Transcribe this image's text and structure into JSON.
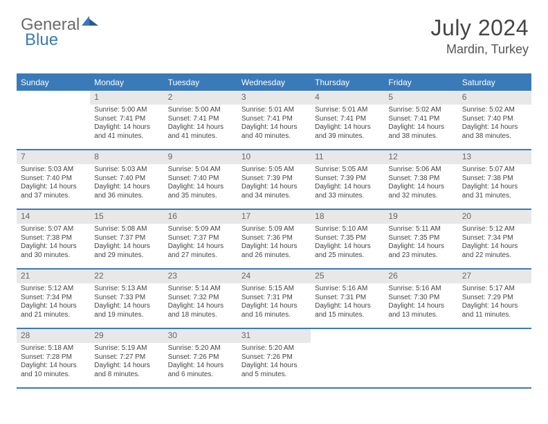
{
  "brand": {
    "part1": "General",
    "part2": "Blue"
  },
  "header": {
    "month_title": "July 2024",
    "location": "Mardin, Turkey"
  },
  "colors": {
    "accent": "#3a7ab8",
    "header_text": "#ffffff",
    "daybar_bg": "#e8e8e8",
    "text": "#444444"
  },
  "weekdays": [
    "Sunday",
    "Monday",
    "Tuesday",
    "Wednesday",
    "Thursday",
    "Friday",
    "Saturday"
  ],
  "start_offset": 1,
  "days": [
    {
      "n": 1,
      "sunrise": "5:00 AM",
      "sunset": "7:41 PM",
      "daylight": "14 hours and 41 minutes."
    },
    {
      "n": 2,
      "sunrise": "5:00 AM",
      "sunset": "7:41 PM",
      "daylight": "14 hours and 41 minutes."
    },
    {
      "n": 3,
      "sunrise": "5:01 AM",
      "sunset": "7:41 PM",
      "daylight": "14 hours and 40 minutes."
    },
    {
      "n": 4,
      "sunrise": "5:01 AM",
      "sunset": "7:41 PM",
      "daylight": "14 hours and 39 minutes."
    },
    {
      "n": 5,
      "sunrise": "5:02 AM",
      "sunset": "7:41 PM",
      "daylight": "14 hours and 38 minutes."
    },
    {
      "n": 6,
      "sunrise": "5:02 AM",
      "sunset": "7:40 PM",
      "daylight": "14 hours and 38 minutes."
    },
    {
      "n": 7,
      "sunrise": "5:03 AM",
      "sunset": "7:40 PM",
      "daylight": "14 hours and 37 minutes."
    },
    {
      "n": 8,
      "sunrise": "5:03 AM",
      "sunset": "7:40 PM",
      "daylight": "14 hours and 36 minutes."
    },
    {
      "n": 9,
      "sunrise": "5:04 AM",
      "sunset": "7:40 PM",
      "daylight": "14 hours and 35 minutes."
    },
    {
      "n": 10,
      "sunrise": "5:05 AM",
      "sunset": "7:39 PM",
      "daylight": "14 hours and 34 minutes."
    },
    {
      "n": 11,
      "sunrise": "5:05 AM",
      "sunset": "7:39 PM",
      "daylight": "14 hours and 33 minutes."
    },
    {
      "n": 12,
      "sunrise": "5:06 AM",
      "sunset": "7:38 PM",
      "daylight": "14 hours and 32 minutes."
    },
    {
      "n": 13,
      "sunrise": "5:07 AM",
      "sunset": "7:38 PM",
      "daylight": "14 hours and 31 minutes."
    },
    {
      "n": 14,
      "sunrise": "5:07 AM",
      "sunset": "7:38 PM",
      "daylight": "14 hours and 30 minutes."
    },
    {
      "n": 15,
      "sunrise": "5:08 AM",
      "sunset": "7:37 PM",
      "daylight": "14 hours and 29 minutes."
    },
    {
      "n": 16,
      "sunrise": "5:09 AM",
      "sunset": "7:37 PM",
      "daylight": "14 hours and 27 minutes."
    },
    {
      "n": 17,
      "sunrise": "5:09 AM",
      "sunset": "7:36 PM",
      "daylight": "14 hours and 26 minutes."
    },
    {
      "n": 18,
      "sunrise": "5:10 AM",
      "sunset": "7:35 PM",
      "daylight": "14 hours and 25 minutes."
    },
    {
      "n": 19,
      "sunrise": "5:11 AM",
      "sunset": "7:35 PM",
      "daylight": "14 hours and 23 minutes."
    },
    {
      "n": 20,
      "sunrise": "5:12 AM",
      "sunset": "7:34 PM",
      "daylight": "14 hours and 22 minutes."
    },
    {
      "n": 21,
      "sunrise": "5:12 AM",
      "sunset": "7:34 PM",
      "daylight": "14 hours and 21 minutes."
    },
    {
      "n": 22,
      "sunrise": "5:13 AM",
      "sunset": "7:33 PM",
      "daylight": "14 hours and 19 minutes."
    },
    {
      "n": 23,
      "sunrise": "5:14 AM",
      "sunset": "7:32 PM",
      "daylight": "14 hours and 18 minutes."
    },
    {
      "n": 24,
      "sunrise": "5:15 AM",
      "sunset": "7:31 PM",
      "daylight": "14 hours and 16 minutes."
    },
    {
      "n": 25,
      "sunrise": "5:16 AM",
      "sunset": "7:31 PM",
      "daylight": "14 hours and 15 minutes."
    },
    {
      "n": 26,
      "sunrise": "5:16 AM",
      "sunset": "7:30 PM",
      "daylight": "14 hours and 13 minutes."
    },
    {
      "n": 27,
      "sunrise": "5:17 AM",
      "sunset": "7:29 PM",
      "daylight": "14 hours and 11 minutes."
    },
    {
      "n": 28,
      "sunrise": "5:18 AM",
      "sunset": "7:28 PM",
      "daylight": "14 hours and 10 minutes."
    },
    {
      "n": 29,
      "sunrise": "5:19 AM",
      "sunset": "7:27 PM",
      "daylight": "14 hours and 8 minutes."
    },
    {
      "n": 30,
      "sunrise": "5:20 AM",
      "sunset": "7:26 PM",
      "daylight": "14 hours and 6 minutes."
    },
    {
      "n": 31,
      "sunrise": "5:20 AM",
      "sunset": "7:26 PM",
      "daylight": "14 hours and 5 minutes."
    }
  ],
  "labels": {
    "sunrise": "Sunrise:",
    "sunset": "Sunset:",
    "daylight": "Daylight:"
  }
}
